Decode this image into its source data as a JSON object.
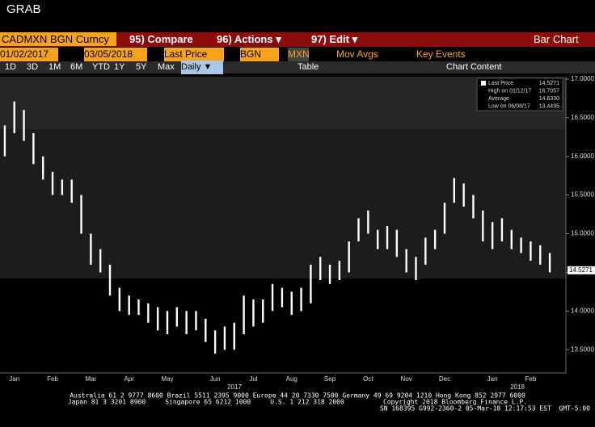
{
  "window_title": "GRAB",
  "toolbar": {
    "security": "CADMXN BGN Curncy",
    "compare": "95) Compare",
    "actions": "96) Actions ▾",
    "edit": "97) Edit ▾",
    "chart_kind": "Bar Chart",
    "start_date": "01/02/2017",
    "end_date": "03/05/2018",
    "field": "Last Price",
    "source": "BGN",
    "currency": "MXN",
    "mov_avgs": "Mov Avgs",
    "key_events": "Key Events",
    "periods": [
      "1D",
      "3D",
      "1M",
      "6M",
      "YTD",
      "1Y",
      "5Y",
      "Max"
    ],
    "frequency": "Daily ▼",
    "table": "Table",
    "chart_content": "Chart Content"
  },
  "chart_data": {
    "type": "range_bar",
    "color": "#ffffff",
    "categories": [
      null,
      "Jan",
      null,
      null,
      null,
      "Feb",
      null,
      null,
      null,
      "Mar",
      null,
      null,
      null,
      "Apr",
      null,
      null,
      null,
      "May",
      null,
      null,
      null,
      null,
      "Jun",
      null,
      null,
      null,
      "Jul",
      null,
      null,
      null,
      "Aug",
      null,
      null,
      null,
      "Sep",
      null,
      null,
      null,
      "Oct",
      null,
      null,
      null,
      "Nov",
      null,
      null,
      null,
      "Dec",
      null,
      null,
      null,
      null,
      "Jan",
      null,
      null,
      null,
      "Feb",
      null,
      null
    ],
    "low": [
      16.0,
      16.3,
      16.2,
      15.9,
      15.7,
      15.5,
      15.5,
      15.4,
      15.0,
      14.6,
      14.5,
      14.2,
      14.0,
      13.95,
      13.95,
      13.85,
      13.75,
      13.7,
      13.8,
      13.7,
      13.75,
      13.6,
      13.45,
      13.5,
      13.5,
      13.7,
      13.8,
      13.85,
      14.0,
      14.05,
      13.95,
      14.0,
      14.1,
      14.4,
      14.35,
      14.4,
      14.5,
      14.9,
      15.0,
      14.8,
      14.8,
      14.7,
      14.5,
      14.4,
      14.6,
      14.8,
      15.0,
      15.4,
      15.35,
      15.2,
      14.9,
      14.8,
      14.9,
      14.8,
      14.75,
      14.65,
      14.6,
      14.5
    ],
    "high": [
      16.4,
      16.71,
      16.6,
      16.3,
      16.0,
      15.8,
      15.7,
      15.7,
      15.5,
      15.0,
      14.8,
      14.6,
      14.3,
      14.2,
      14.15,
      14.1,
      14.05,
      14.0,
      14.05,
      14.0,
      14.0,
      13.9,
      13.75,
      13.8,
      13.85,
      14.2,
      14.15,
      14.15,
      14.35,
      14.3,
      14.25,
      14.3,
      14.6,
      14.7,
      14.6,
      14.65,
      14.9,
      15.2,
      15.3,
      15.05,
      15.1,
      15.05,
      14.8,
      14.7,
      14.95,
      15.05,
      15.4,
      15.72,
      15.65,
      15.5,
      15.3,
      15.15,
      15.2,
      15.05,
      14.95,
      14.9,
      14.85,
      14.75
    ],
    "year_labels": [
      "2017",
      "2018"
    ],
    "ylim": [
      13.2,
      17.03
    ],
    "yticks": [
      {
        "value": 13.5,
        "label": "13.5000"
      },
      {
        "value": 14,
        "label": "14.0000"
      },
      {
        "value": 14.5,
        "label": "14.5000"
      },
      {
        "value": 15,
        "label": "15.0000"
      },
      {
        "value": 15.5,
        "label": "15.5000"
      },
      {
        "value": 16,
        "label": "16.0000"
      },
      {
        "value": 16.5,
        "label": "16.5000"
      },
      {
        "value": 17,
        "label": "17.0000"
      }
    ],
    "last_price": {
      "value": 14.5271,
      "label": "14.5271"
    },
    "grid": false,
    "legend_box": [
      {
        "label": "Last Price",
        "value": "14.5271"
      },
      {
        "label": "High on 01/12/17",
        "value": "16.7057"
      },
      {
        "label": "Average",
        "value": "14.6330"
      },
      {
        "label": "Low on 06/08/17",
        "value": "13.4495"
      }
    ]
  },
  "footer": [
    "Australia 61 2 9777 8600 Brazil 5511 2395 9000 Europe 44 20 7330 7500 Germany 49 69 9204 1210 Hong Kong 852 2977 6000",
    "Japan 81 3 3201 8900     Singapore 65 6212 1000     U.S. 1 212 318 2000          Copyright 2018 Bloomberg Finance L.P.",
    "SN 168395 G992-2360-2 05-Mar-18 12:17:53 EST  GMT-5:00"
  ]
}
